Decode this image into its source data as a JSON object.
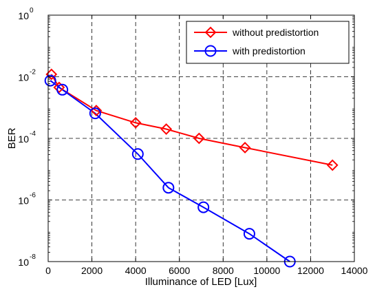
{
  "chart_data": {
    "type": "line",
    "xlabel": "Illuminance of LED [Lux]",
    "ylabel": "BER",
    "xlim": [
      0,
      14000
    ],
    "ylim": [
      1e-08,
      1
    ],
    "yscale": "log",
    "x_ticks": [
      0,
      2000,
      4000,
      6000,
      8000,
      10000,
      12000,
      14000
    ],
    "y_ticks": [
      {
        "base": "10",
        "exp": "-8",
        "value": 1e-08
      },
      {
        "base": "10",
        "exp": "-6",
        "value": 1e-06
      },
      {
        "base": "10",
        "exp": "-4",
        "value": 0.0001
      },
      {
        "base": "10",
        "exp": "-2",
        "value": 0.01
      },
      {
        "base": "10",
        "exp": "0",
        "value": 1
      }
    ],
    "grid": true,
    "grid_style": "dashed",
    "legend_position": "top-right",
    "series": [
      {
        "name": "without predistortion",
        "color": "#ff0000",
        "marker": "diamond",
        "x": [
          150,
          500,
          2200,
          4000,
          5400,
          6900,
          9000,
          13000
        ],
        "y": [
          0.012,
          0.0045,
          0.0008,
          0.00032,
          0.0002,
          0.0001,
          5e-05,
          1.35e-05
        ]
      },
      {
        "name": "with predistortion",
        "color": "#0000ff",
        "marker": "circle",
        "x": [
          100,
          650,
          2150,
          4100,
          5500,
          7100,
          9200,
          11050
        ],
        "y": [
          0.0075,
          0.0038,
          0.00065,
          3.1e-05,
          2.5e-06,
          5.8e-07,
          8e-08,
          1e-08
        ]
      }
    ]
  }
}
